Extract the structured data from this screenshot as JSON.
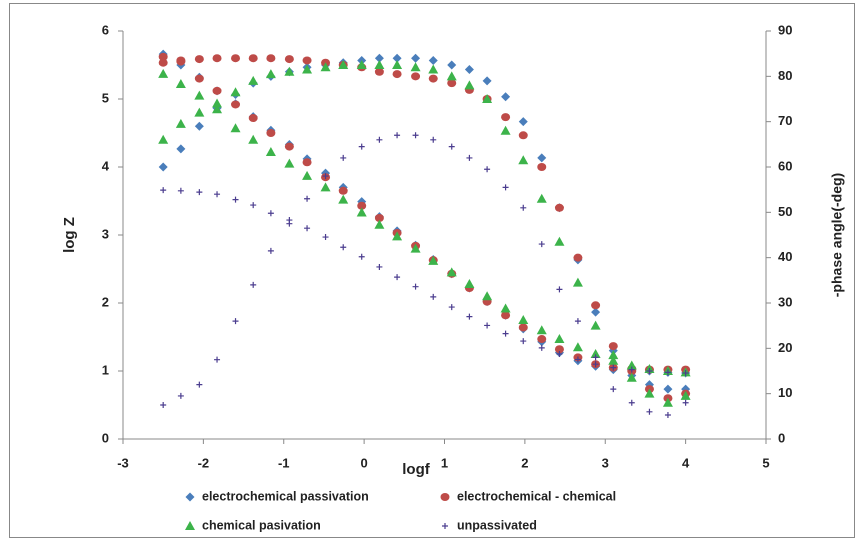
{
  "chart_data": {
    "type": "scatter",
    "xlabel": "logf",
    "ylabel": "log Z",
    "y2label": "-phase angle(-deg)",
    "xlim": [
      -3,
      5
    ],
    "xticks": [
      -3,
      -2,
      -1,
      0,
      1,
      2,
      3,
      4,
      5
    ],
    "ylim": [
      0,
      6
    ],
    "yticks": [
      0,
      1,
      2,
      3,
      4,
      5,
      6
    ],
    "y2lim": [
      0,
      90
    ],
    "y2ticks": [
      0,
      10,
      20,
      30,
      40,
      50,
      60,
      70,
      80,
      90
    ],
    "x": [
      -2.5,
      -2.28,
      -2.05,
      -1.83,
      -1.6,
      -1.38,
      -1.16,
      -0.93,
      -0.71,
      -0.48,
      -0.26,
      -0.03,
      0.19,
      0.41,
      0.64,
      0.86,
      1.09,
      1.31,
      1.53,
      1.76,
      1.98,
      2.21,
      2.43,
      2.66,
      2.88,
      3.1,
      3.33,
      3.55,
      3.78,
      4.0
    ],
    "series": [
      {
        "name": "electrochemical passivation",
        "color": "#4a7ebb",
        "marker": "diamond",
        "values": [
          5.66,
          5.5,
          5.32,
          5.12,
          4.93,
          4.74,
          4.54,
          4.33,
          4.12,
          3.91,
          3.7,
          3.49,
          3.27,
          3.06,
          2.85,
          2.64,
          2.43,
          2.22,
          2.02,
          1.82,
          1.62,
          1.43,
          1.27,
          1.15,
          1.07,
          1.02,
          1.0,
          1.0,
          0.98,
          0.97
        ],
        "phase_values": [
          60,
          64,
          69,
          73,
          76,
          78.5,
          80,
          81,
          82,
          82.5,
          83,
          83.5,
          84,
          84,
          84,
          83.5,
          82.5,
          81.5,
          79,
          75.5,
          70,
          62,
          51,
          39.5,
          28,
          19.5,
          14,
          12,
          11,
          11
        ]
      },
      {
        "name": "electrochemical - chemical",
        "color": "#be4b48",
        "marker": "circle",
        "values": [
          5.62,
          5.55,
          5.3,
          5.12,
          4.92,
          4.72,
          4.5,
          4.3,
          4.07,
          3.85,
          3.65,
          3.43,
          3.25,
          3.03,
          2.84,
          2.63,
          2.43,
          2.22,
          2.02,
          1.82,
          1.64,
          1.47,
          1.32,
          1.2,
          1.1,
          1.05,
          1.03,
          1.02,
          1.02,
          1.02
        ],
        "phase_values": [
          83,
          83.5,
          83.8,
          84,
          84,
          84,
          84,
          83.8,
          83.5,
          83,
          82.5,
          82,
          81,
          80.5,
          80,
          79.5,
          78.5,
          77,
          75,
          71,
          67,
          60,
          51,
          40,
          29.5,
          20.5,
          15,
          11,
          9,
          10
        ]
      },
      {
        "name": "chemical pasivation",
        "color": "#3cb34a",
        "marker": "triangle",
        "values": [
          5.37,
          5.22,
          5.05,
          4.85,
          4.57,
          4.4,
          4.22,
          4.05,
          3.87,
          3.7,
          3.52,
          3.33,
          3.15,
          2.98,
          2.8,
          2.62,
          2.45,
          2.28,
          2.1,
          1.92,
          1.75,
          1.6,
          1.47,
          1.35,
          1.25,
          1.15,
          1.08,
          1.03,
          1.0,
          0.98
        ],
        "phase_values": [
          66,
          69.5,
          72,
          74,
          76.5,
          79,
          80.5,
          81,
          81.5,
          82,
          82.5,
          82.5,
          82.5,
          82.5,
          82,
          81.5,
          80,
          78,
          75,
          68,
          61.5,
          53,
          43.5,
          34.5,
          25,
          18.5,
          13.5,
          10,
          8,
          9.5
        ]
      },
      {
        "name": "unpassivated",
        "color": "#4b3d8f",
        "marker": "plus",
        "values": [
          3.66,
          3.65,
          3.63,
          3.6,
          3.52,
          3.44,
          3.32,
          3.22,
          3.1,
          2.97,
          2.82,
          2.68,
          2.53,
          2.38,
          2.24,
          2.09,
          1.94,
          1.8,
          1.67,
          1.55,
          1.44,
          1.34,
          1.25,
          1.17,
          1.1,
          1.05,
          1.02,
          1.0,
          0.98,
          0.97
        ],
        "phase_values": [
          7.5,
          9.5,
          12,
          17.5,
          26,
          34,
          41.5,
          47.5,
          53,
          58,
          62,
          64.5,
          66,
          67,
          67,
          66,
          64.5,
          62,
          59.5,
          55.5,
          51,
          43,
          33,
          26,
          18,
          11,
          8,
          6,
          5.3,
          8
        ]
      }
    ]
  }
}
